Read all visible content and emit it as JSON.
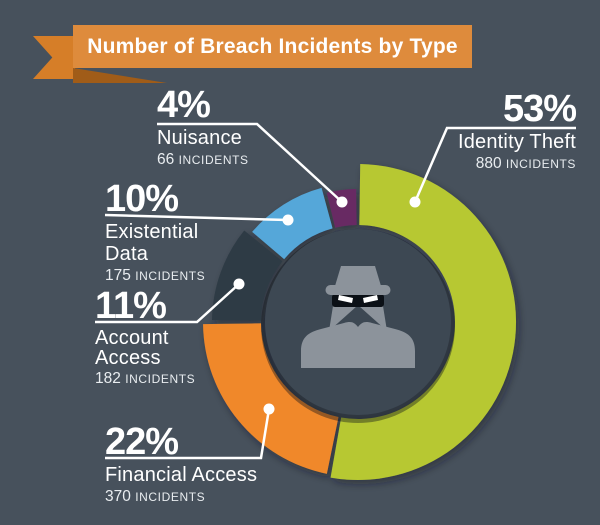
{
  "header": {
    "title": "Number of Breach Incidents by Type"
  },
  "chart_data": {
    "type": "pie",
    "subtype": "donut",
    "title": "Number of Breach Incidents by Type",
    "unit_label": "INCIDENTS",
    "slices": [
      {
        "label": "Identity Theft",
        "pct": 53,
        "incidents": 880,
        "color": "#b7c832"
      },
      {
        "label": "Financial Access",
        "pct": 22,
        "incidents": 370,
        "color": "#f0882b"
      },
      {
        "label": "Account Access",
        "pct": 11,
        "incidents": 182,
        "color": "#2d3a45"
      },
      {
        "label": "Existential Data",
        "pct": 10,
        "incidents": 175,
        "color": "#55a7d9"
      },
      {
        "label": "Nuisance",
        "pct": 4,
        "incidents": 66,
        "color": "#682a64"
      }
    ],
    "layout": {
      "center": [
        358,
        322
      ],
      "inner_radius": 97,
      "outer_radii": [
        158,
        155,
        146,
        139,
        133
      ],
      "start_angle_deg": 0,
      "clockwise": true,
      "gap_deg": 1.6,
      "legend": "callout labels with leader lines and dots around donut"
    }
  },
  "callouts": [
    {
      "pct": "53%",
      "name": "Identity Theft",
      "count": "880",
      "unit": "INCIDENTS"
    },
    {
      "pct": "22%",
      "name": "Financial Access",
      "count": "370",
      "unit": "INCIDENTS"
    },
    {
      "pct": "11%",
      "name": "Account Access",
      "count": "182",
      "unit": "INCIDENTS"
    },
    {
      "pct": "10%",
      "name": "Existential Data",
      "count": "175",
      "unit": "INCIDENTS"
    },
    {
      "pct": "4%",
      "name": "Nuisance",
      "count": "66",
      "unit": "INCIDENTS"
    }
  ],
  "icons": {
    "center": "spy-thief-icon"
  },
  "colors": {
    "background": "#47515c",
    "ribbon_band": "#de8b3c",
    "ribbon_tail": "#d67e28",
    "ribbon_fold": "#a05c18",
    "center_disk": "#3d4853",
    "spy_gray": "#8c939b",
    "callout_line": "#ffffff",
    "text": "#ffffff"
  }
}
